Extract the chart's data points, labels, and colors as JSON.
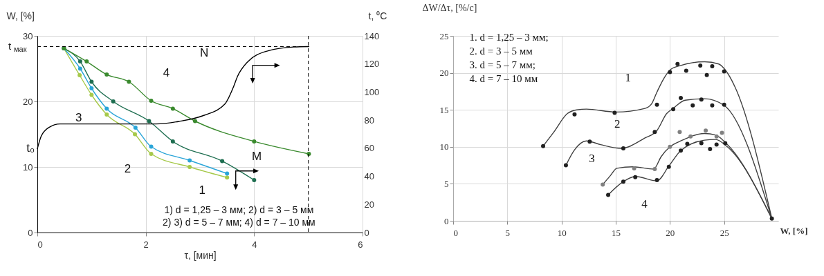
{
  "chart_data": [
    {
      "type": "line",
      "xlabel": "τ, [мин]",
      "ylabel": "W, [%]",
      "y2label": "t, ⁰C",
      "xlim": [
        0,
        6
      ],
      "xticks": [
        0,
        2,
        4,
        6
      ],
      "ylim": [
        0,
        30
      ],
      "yticks": [
        0,
        10,
        20,
        30
      ],
      "y2lim": [
        0,
        140
      ],
      "y2ticks": [
        0,
        20,
        40,
        60,
        80,
        100,
        120,
        140
      ],
      "grid": true,
      "marker": "circle",
      "series": [
        {
          "color": "#a6c94a",
          "x": [
            0.49,
            0.78,
            1.0,
            1.28,
            1.8,
            2.1,
            2.81,
            3.5
          ],
          "values": [
            28.1,
            24.0,
            21.0,
            18.0,
            15.0,
            12.0,
            10.0,
            8.4
          ]
        },
        {
          "color": "#2aa5d8",
          "x": [
            0.49,
            0.79,
            1.0,
            1.28,
            1.81,
            2.1,
            2.81,
            3.5
          ],
          "values": [
            28.1,
            25.0,
            22.0,
            18.9,
            16.0,
            13.1,
            11.0,
            9.0
          ]
        },
        {
          "color": "#1e6e50",
          "x": [
            0.49,
            0.79,
            1.0,
            1.4,
            2.06,
            2.5,
            3.41,
            4.0
          ],
          "values": [
            28.1,
            26.1,
            23.0,
            20.0,
            17.0,
            13.9,
            10.9,
            8.0
          ]
        },
        {
          "color": "#3a8a2e",
          "x": [
            0.49,
            0.91,
            1.28,
            1.69,
            2.1,
            2.5,
            2.91,
            4.0,
            5.01
          ],
          "values": [
            28.1,
            26.1,
            24.1,
            23.0,
            20.1,
            18.9,
            17.0,
            13.9,
            12.0
          ]
        },
        {
          "color": "#000000",
          "axis": "y2",
          "marker": "none",
          "x": [
            0,
            0.07,
            0.21,
            0.42,
            2.19,
            2.61,
            3.08,
            3.46,
            3.62,
            3.69,
            3.88,
            4.26,
            4.73,
            5.01
          ],
          "values": [
            59.7,
            68.5,
            74.7,
            77.3,
            77.3,
            79.1,
            83.5,
            91.5,
            103.8,
            110.9,
            121.5,
            129.4,
            132.1,
            132.4
          ]
        }
      ],
      "ref_lines": [
        {
          "axis": "y2",
          "value": 132.4,
          "label": "t$_{мак}$",
          "line_style": "dashed"
        },
        {
          "axis": "x",
          "value": 5,
          "line_style": "dashed"
        }
      ],
      "annotations": [
        {
          "text": "1",
          "x": 2.81,
          "y": 10.0
        },
        {
          "text": "2",
          "x": 2.1,
          "y": 13.1
        },
        {
          "text": "3",
          "x": 1.4,
          "y": 20.0
        },
        {
          "text": "4",
          "x": 2.1,
          "y": 20.1
        },
        {
          "text": "M",
          "x": 3.41,
          "y": 10.9
        },
        {
          "text": "N",
          "x": 3.69,
          "y": 23.8
        },
        {
          "text": "t₀",
          "x": 0,
          "y": 12.8
        },
        "1)  d = 1,25 – 3 мм; 2) d = 3 – 5 мм",
        "2)  3) d = 5 – 7 мм; 4) d = 7 – 10 мм"
      ]
    },
    {
      "type": "line",
      "xlabel": "W, [%]",
      "ylabel": "ΔW/Δτ, [%/c]",
      "xlim": [
        0,
        30
      ],
      "xticks": [
        0,
        5,
        10,
        15,
        20,
        25
      ],
      "ylim": [
        0,
        25
      ],
      "yticks": [
        0,
        5,
        10,
        15,
        20,
        25
      ],
      "grid": true,
      "series": [
        {
          "color": "#404040",
          "x": [
            8.3,
            9.24,
            10.54,
            11.4,
            12.3,
            15.0,
            17.7,
            18.3,
            18.8,
            19.5,
            20.1,
            21.0,
            23.2,
            24.5,
            25.1,
            26.0,
            29.4
          ],
          "values": [
            10.1,
            11.9,
            14.5,
            15.0,
            15.1,
            14.7,
            15.2,
            15.8,
            17.4,
            19.4,
            20.5,
            21.0,
            21.5,
            21.2,
            20.4,
            18.1,
            0.3
          ]
        },
        {
          "color": "#404040",
          "x": [
            10.4,
            11.2,
            12.3,
            13.6,
            15.5,
            17.7,
            18.8,
            19.7,
            20.3,
            21.4,
            23.2,
            25.0,
            29.4
          ],
          "values": [
            7.5,
            9.6,
            10.8,
            10.3,
            9.8,
            11.2,
            12.2,
            14.5,
            15.2,
            16.3,
            16.5,
            15.6,
            0.3
          ]
        },
        {
          "color": "#404040",
          "x": [
            13.8,
            14.5,
            15.1,
            16.6,
            18.5,
            19.2,
            20.0,
            21.0,
            23.2,
            24.2,
            25.3,
            29.4
          ],
          "values": [
            4.9,
            6.1,
            7.1,
            7.3,
            7.0,
            8.7,
            10.0,
            10.8,
            11.8,
            11.6,
            10.3,
            0.3
          ]
        },
        {
          "color": "#404040",
          "x": [
            14.3,
            15.7,
            16.8,
            18.8,
            19.9,
            21.0,
            23.2,
            24.2,
            25.3,
            29.4
          ],
          "values": [
            3.5,
            5.3,
            6.0,
            5.4,
            7.4,
            9.5,
            10.9,
            11.0,
            10.0,
            0.3
          ]
        },
        {
          "type": "scatter",
          "marker": "circle",
          "color": "#202020",
          "x": [
            8.3,
            11.2,
            14.9,
            18.8,
            20.0,
            20.7,
            21.5,
            22.8,
            23.4,
            23.9,
            25.0,
            29.4
          ],
          "values": [
            10.1,
            14.4,
            14.6,
            15.7,
            20.1,
            21.2,
            20.3,
            21.0,
            19.7,
            20.9,
            20.2,
            0.3
          ]
        },
        {
          "type": "scatter",
          "marker": "circle",
          "color": "#202020",
          "x": [
            10.4,
            12.6,
            15.7,
            18.6,
            20.3,
            21.0,
            22.1,
            22.9,
            23.9,
            25.0
          ],
          "values": [
            7.5,
            10.7,
            9.8,
            12.0,
            15.1,
            16.6,
            15.6,
            16.4,
            15.6,
            15.7
          ]
        },
        {
          "type": "scatter",
          "marker": "circle",
          "color": "#808080",
          "x": [
            13.8,
            16.7,
            18.6,
            20.0,
            20.9,
            21.9,
            23.3,
            24.3,
            24.8
          ],
          "values": [
            4.9,
            7.1,
            7.0,
            10.0,
            12.0,
            11.4,
            12.2,
            11.4,
            11.9
          ]
        },
        {
          "type": "scatter",
          "marker": "circle",
          "color": "#202020",
          "x": [
            14.3,
            15.7,
            16.8,
            18.8,
            19.9,
            21.0,
            21.6,
            22.9,
            23.7,
            24.3,
            25.1
          ],
          "values": [
            3.5,
            5.3,
            5.9,
            5.5,
            7.3,
            9.5,
            10.4,
            10.5,
            9.7,
            10.3,
            10.5
          ]
        }
      ],
      "annotations": [
        {
          "text": "1",
          "x": 18.3,
          "y": 15.8
        },
        {
          "text": "2",
          "x": 17.7,
          "y": 11.2
        },
        {
          "text": "3",
          "x": 15.1,
          "y": 7.1
        },
        {
          "text": "4",
          "x": 18.8,
          "y": 5.4
        },
        "1.   d = 1,25 – 3 мм;",
        "2.   d = 3 – 5 мм",
        "3.   d = 5 – 7 мм;",
        "4.   d = 7 – 10 мм"
      ]
    }
  ]
}
